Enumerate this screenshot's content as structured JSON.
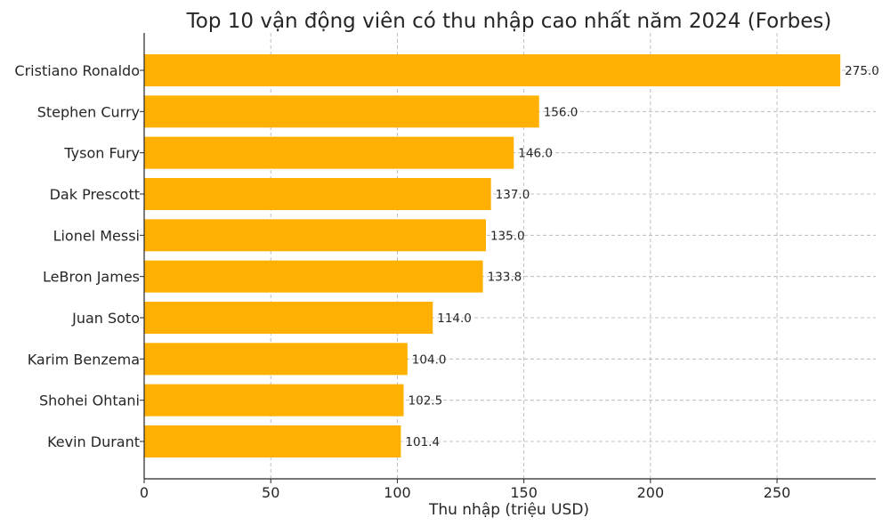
{
  "chart_data": {
    "type": "bar",
    "orientation": "horizontal",
    "title": "Top 10 vận động viên có thu nhập cao nhất năm 2024 (Forbes)",
    "xlabel": "Thu nhập (triệu USD)",
    "ylabel": "",
    "categories": [
      "Cristiano Ronaldo",
      "Stephen Curry",
      "Tyson Fury",
      "Dak Prescott",
      "Lionel Messi",
      "LeBron James",
      "Juan Soto",
      "Karim Benzema",
      "Shohei Ohtani",
      "Kevin Durant"
    ],
    "values": [
      275.0,
      156.0,
      146.0,
      137.0,
      135.0,
      133.8,
      114.0,
      104.0,
      102.5,
      101.4
    ],
    "value_labels": [
      "275.0",
      "156.0",
      "146.0",
      "137.0",
      "135.0",
      "133.8",
      "114.0",
      "104.0",
      "102.5",
      "101.4"
    ],
    "xlim": [
      0,
      289
    ],
    "xticks": [
      0,
      50,
      100,
      150,
      200,
      250
    ],
    "xtick_labels": [
      "0",
      "50",
      "100",
      "150",
      "200",
      "250"
    ],
    "grid": true,
    "bar_color": "#FFB000"
  }
}
